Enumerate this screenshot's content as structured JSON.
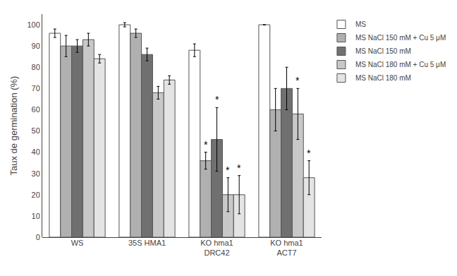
{
  "chart_data": {
    "type": "bar",
    "categories": [
      "WS",
      "35S HMA1",
      "KO hma1\nDRC42",
      "KO hma1\nACT7"
    ],
    "series": [
      {
        "name": "MS",
        "color": "#ffffff",
        "values": [
          96,
          100,
          88,
          100
        ],
        "errors": [
          2,
          1,
          3,
          0
        ]
      },
      {
        "name": "MS NaCl 150 mM + Cu 5 μM",
        "color": "#b0b0b0",
        "values": [
          90,
          96,
          36,
          60
        ],
        "errors": [
          5,
          2,
          4,
          10
        ]
      },
      {
        "name": "MS NaCl 150 mM",
        "color": "#707070",
        "values": [
          90,
          86,
          46,
          70
        ],
        "errors": [
          3,
          3,
          15,
          10
        ]
      },
      {
        "name": "MS NaCl 180 mM + Cu 5 μM",
        "color": "#c8c8c8",
        "values": [
          93,
          68,
          20,
          58
        ],
        "errors": [
          3,
          3,
          8,
          12
        ]
      },
      {
        "name": "MS NaCl 180 mM",
        "color": "#e4e4e4",
        "values": [
          84,
          74,
          20,
          28
        ],
        "errors": [
          2,
          2,
          9,
          8
        ]
      }
    ],
    "ylabel": "Taux de germination (%)",
    "ylim": [
      0,
      105
    ],
    "yticks": [
      0,
      10,
      20,
      30,
      40,
      50,
      60,
      70,
      80,
      90,
      100
    ],
    "annotations": [
      {
        "text": "*",
        "category": "KO hma1\nDRC42",
        "series": "MS NaCl 150 mM + Cu 5 μM"
      },
      {
        "text": "*",
        "category": "KO hma1\nDRC42",
        "series": "MS NaCl 150 mM"
      },
      {
        "text": "*",
        "category": "KO hma1\nDRC42",
        "series": "MS NaCl 180 mM + Cu 5 μM"
      },
      {
        "text": "*",
        "category": "KO hma1\nDRC42",
        "series": "MS NaCl 180 mM"
      },
      {
        "text": "*",
        "category": "KO hma1\nACT7",
        "series": "MS NaCl 180 mM + Cu 5 μM"
      },
      {
        "text": "*",
        "category": "KO hma1\nACT7",
        "series": "MS NaCl 180 mM"
      }
    ],
    "grid": false,
    "legend": "right"
  }
}
